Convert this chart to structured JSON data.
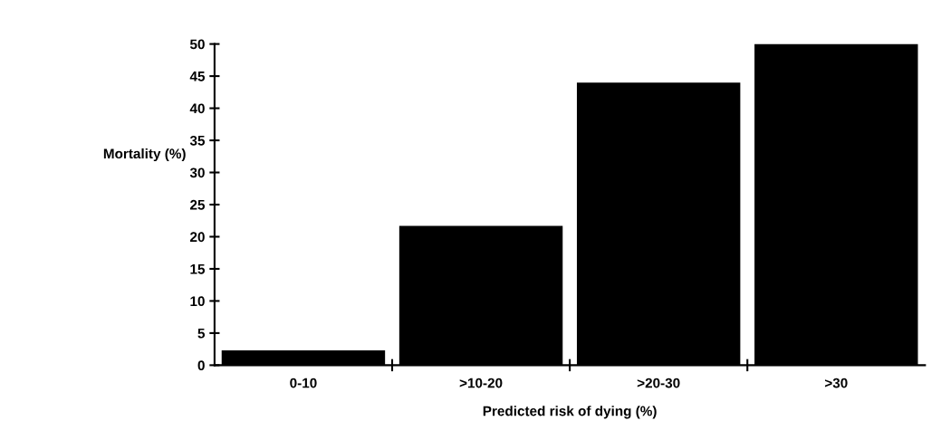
{
  "chart_data": {
    "type": "bar",
    "xlabel": "Predicted risk of dying (%)",
    "ylabel": "Mortality (%)",
    "categories": [
      "0-10",
      ">10-20",
      ">20-30",
      ">30"
    ],
    "values": [
      2.3,
      21.7,
      44.0,
      50
    ],
    "color": "#000000",
    "ylim": [
      0,
      50
    ],
    "yticks": [
      0,
      5,
      10,
      15,
      20,
      25,
      30,
      35,
      40,
      45,
      50
    ],
    "grid": false
  }
}
